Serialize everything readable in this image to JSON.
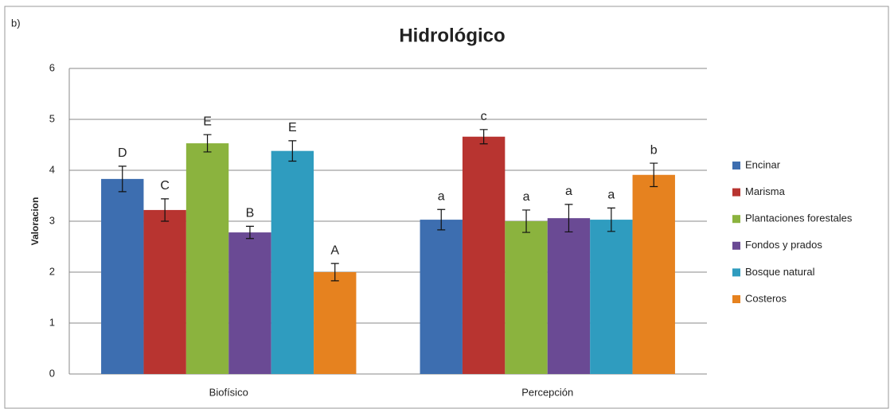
{
  "chart_data": {
    "type": "bar",
    "panel_label": "b)",
    "title": "Hidrológico",
    "y_label": "Valoracion",
    "categories": [
      "Biofísico",
      "Percepción"
    ],
    "series": [
      {
        "name": "Encinar",
        "color": "#3d6eb0",
        "values": [
          3.83,
          3.03
        ],
        "errors": [
          0.25,
          0.2
        ],
        "letters": [
          "D",
          "a"
        ]
      },
      {
        "name": "Marisma",
        "color": "#b83430",
        "values": [
          3.22,
          4.66
        ],
        "errors": [
          0.22,
          0.14
        ],
        "letters": [
          "C",
          "c"
        ]
      },
      {
        "name": "Plantaciones forestales",
        "color": "#8bb33e",
        "values": [
          4.53,
          3.0
        ],
        "errors": [
          0.17,
          0.22
        ],
        "letters": [
          "E",
          "a"
        ]
      },
      {
        "name": "Fondos y prados",
        "color": "#6a4a94",
        "values": [
          2.78,
          3.06
        ],
        "errors": [
          0.12,
          0.27
        ],
        "letters": [
          "B",
          "a"
        ]
      },
      {
        "name": "Bosque natural",
        "color": "#2f9cbf",
        "values": [
          4.38,
          3.03
        ],
        "errors": [
          0.2,
          0.23
        ],
        "letters": [
          "E",
          "a"
        ]
      },
      {
        "name": "Costeros",
        "color": "#e6821f",
        "values": [
          2.0,
          3.91
        ],
        "errors": [
          0.17,
          0.23
        ],
        "letters": [
          "A",
          "b"
        ]
      }
    ],
    "ylim": [
      0,
      6
    ],
    "yticks": [
      0,
      1,
      2,
      3,
      4,
      5,
      6
    ],
    "grid": true,
    "legend": "right"
  }
}
